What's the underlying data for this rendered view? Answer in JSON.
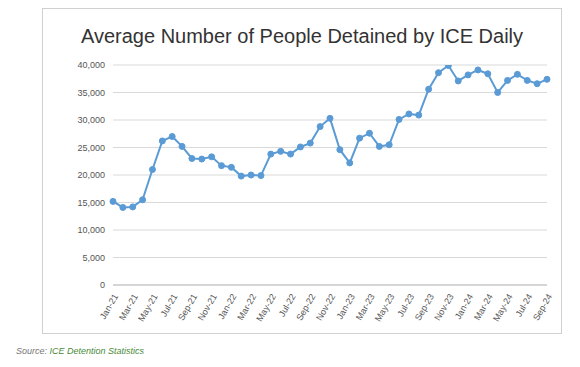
{
  "chart_data": {
    "type": "line",
    "title": "Average Number of People Detained by ICE Daily",
    "source_label": "Source:",
    "source": "ICE Detention Statistics",
    "categories": [
      "Jan-21",
      null,
      "Mar-21",
      null,
      "May-21",
      null,
      "Jul-21",
      null,
      "Sep-21",
      null,
      "Nov-21",
      null,
      "Jan-22",
      null,
      "Mar-22",
      null,
      "May-22",
      null,
      "Jul-22",
      null,
      "Sep-22",
      null,
      "Nov-22",
      null,
      "Jan-23",
      null,
      "Mar-23",
      null,
      "May-23",
      null,
      "Jul-23",
      null,
      "Sep-23",
      null,
      "Nov-23",
      null,
      "Jan-24",
      null,
      "Mar-24",
      null,
      "May-24",
      null,
      "Jul-24",
      null,
      "Sep-24"
    ],
    "values": [
      15200,
      14100,
      14200,
      15500,
      21000,
      26200,
      27000,
      25200,
      23000,
      22900,
      23300,
      21700,
      21400,
      19800,
      20000,
      19900,
      23800,
      24300,
      23800,
      25100,
      25800,
      28800,
      30300,
      24600,
      22200,
      26700,
      27600,
      25200,
      25500,
      30100,
      31100,
      30900,
      35600,
      38600,
      39900,
      37100,
      38200,
      39100,
      38400,
      35000,
      37200,
      38300,
      37200,
      36600,
      37400
    ],
    "color": "#5b9bd5",
    "marker": "circle",
    "line_style": "solid",
    "ylim": [
      0,
      40000
    ],
    "yticks": [
      0,
      {
        "value": 5000,
        "label": "5,000"
      },
      {
        "value": 10000,
        "label": "10,000"
      },
      {
        "value": 15000,
        "label": "15,000"
      },
      {
        "value": 20000,
        "label": "20,000"
      },
      {
        "value": 25000,
        "label": "25,000"
      },
      {
        "value": 30000,
        "label": "30,000"
      },
      {
        "value": 35000,
        "label": "35,000"
      },
      {
        "value": 40000,
        "label": "40,000"
      }
    ],
    "grid": true
  }
}
